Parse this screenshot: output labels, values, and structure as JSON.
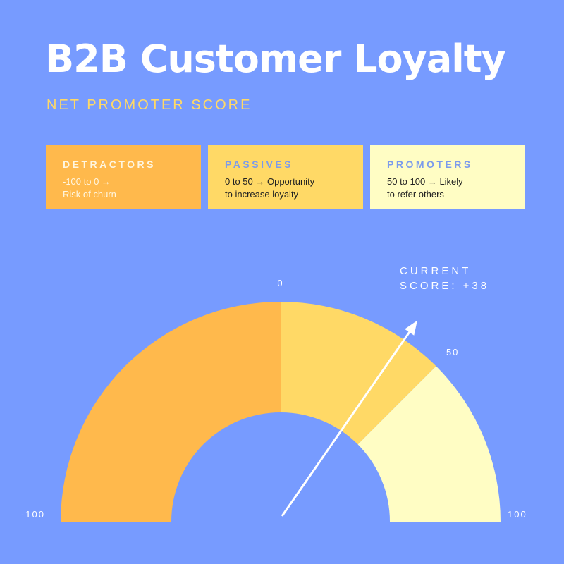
{
  "header": {
    "title": "B2B Customer Loyalty",
    "subtitle": "NET PROMOTER SCORE"
  },
  "legend": [
    {
      "label": "DETRACTORS",
      "line1": "-100 to 0 →",
      "line2": "Risk of churn",
      "color": "#ffb94c"
    },
    {
      "label": "PASSIVES",
      "line1": "0 to 50 → Opportunity",
      "line2": "to increase loyalty",
      "color": "#ffd966"
    },
    {
      "label": "PROMOTERS",
      "line1": "50 to 100 → Likely",
      "line2": "to refer others",
      "color": "#fffdc4"
    }
  ],
  "chart_data": {
    "type": "gauge",
    "range": [
      -100,
      100
    ],
    "segments": [
      {
        "name": "Detractors",
        "from": -100,
        "to": 0,
        "color": "#ffb94c"
      },
      {
        "name": "Passives",
        "from": 0,
        "to": 50,
        "color": "#ffd966"
      },
      {
        "name": "Promoters",
        "from": 50,
        "to": 100,
        "color": "#fffdc4"
      }
    ],
    "tick_labels": [
      "-100",
      "0",
      "50",
      "100"
    ],
    "ticks": [
      -100,
      0,
      50,
      100
    ],
    "value": 38,
    "value_label_line1": "CURRENT",
    "value_label_line2": "SCORE: +38"
  }
}
